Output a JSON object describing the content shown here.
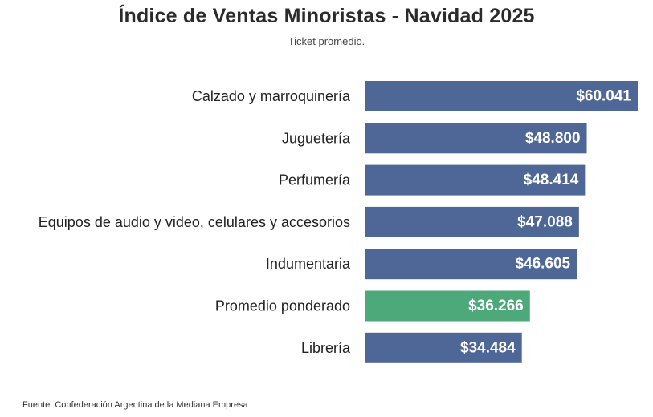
{
  "chart_data": {
    "type": "bar",
    "orientation": "horizontal",
    "title": "Índice de Ventas Minoristas - Navidad 2025",
    "subtitle": "Ticket promedio.",
    "categories": [
      "Calzado y marroquinería",
      "Juguetería",
      "Perfumería",
      "Equipos de audio y video, celulares y accesorios",
      "Indumentaria",
      "Promedio ponderado",
      "Librería"
    ],
    "values": [
      60041,
      48800,
      48414,
      47088,
      46605,
      36266,
      34484
    ],
    "value_labels": [
      "$60.041",
      "$48.800",
      "$48.414",
      "$47.088",
      "$46.605",
      "$36.266",
      "$34.484"
    ],
    "highlight_index": 5,
    "colors": {
      "bar": "#4e6796",
      "highlight": "#4ea97a"
    },
    "xlim": [
      0,
      60041
    ],
    "grid": false,
    "legend": "none",
    "xlabel": "",
    "ylabel": ""
  },
  "source": "Fuente: Confederación Argentina de la Mediana Empresa"
}
